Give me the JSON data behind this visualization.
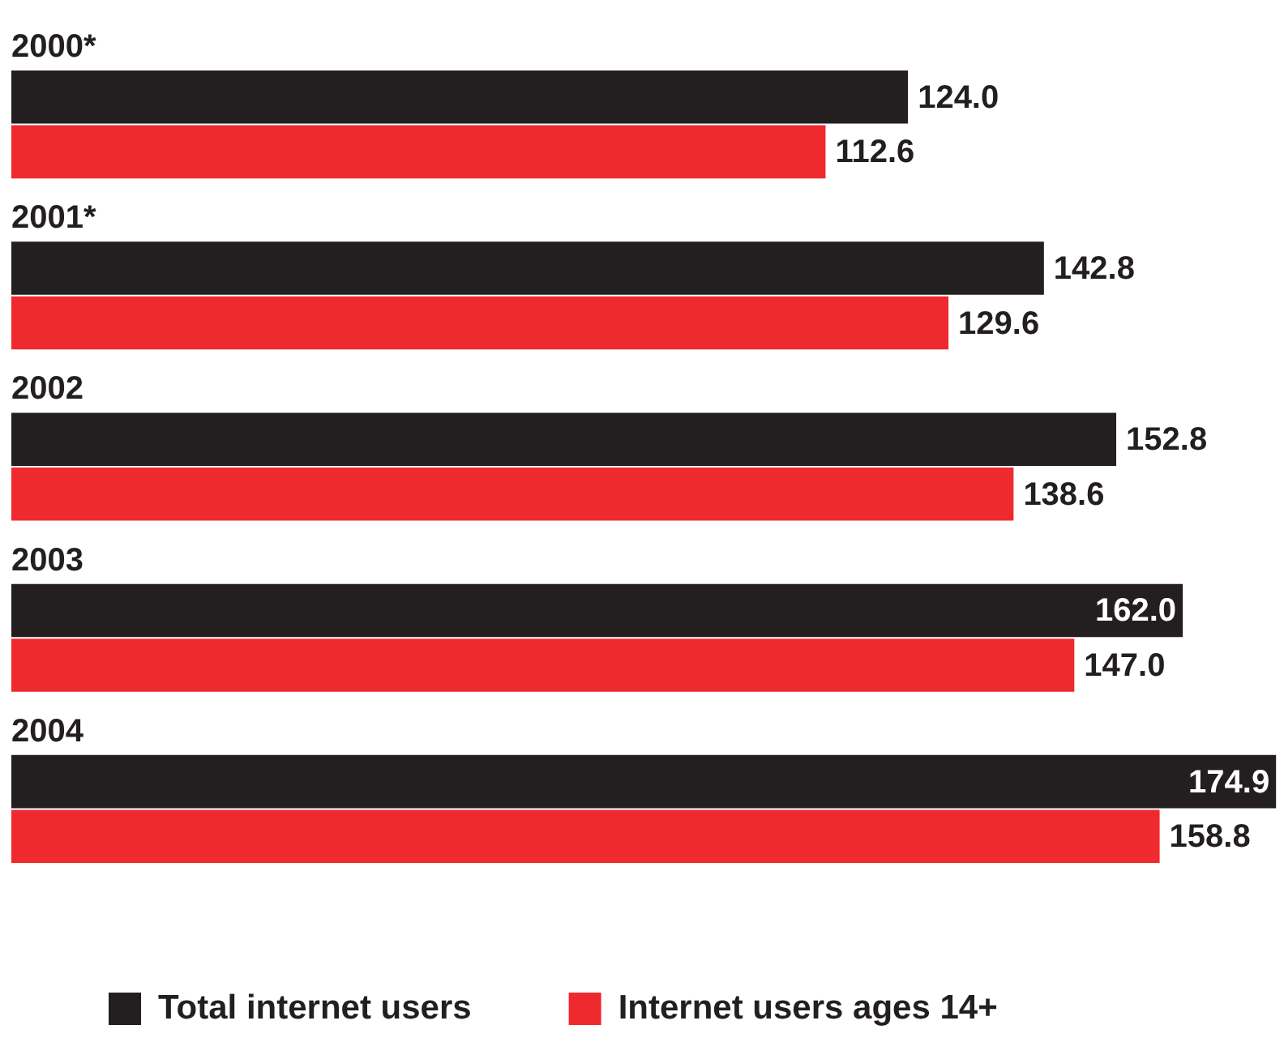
{
  "chart_data": {
    "type": "bar",
    "orientation": "horizontal",
    "categories": [
      "2000*",
      "2001*",
      "2002",
      "2003",
      "2004"
    ],
    "series": [
      {
        "name": "Total internet users",
        "color": "#231f20",
        "values": [
          124.0,
          142.8,
          152.8,
          162.0,
          174.9
        ],
        "value_labels": [
          "124.0",
          "142.8",
          "152.8",
          "162.0",
          "174.9"
        ]
      },
      {
        "name": "Internet users ages 14+",
        "color": "#ee2a2e",
        "values": [
          112.6,
          129.6,
          138.6,
          147.0,
          158.8
        ],
        "value_labels": [
          "112.6",
          "129.6",
          "138.6",
          "147.0",
          "158.8"
        ]
      }
    ],
    "xlim": [
      0,
      176
    ],
    "legend": "bottom"
  }
}
